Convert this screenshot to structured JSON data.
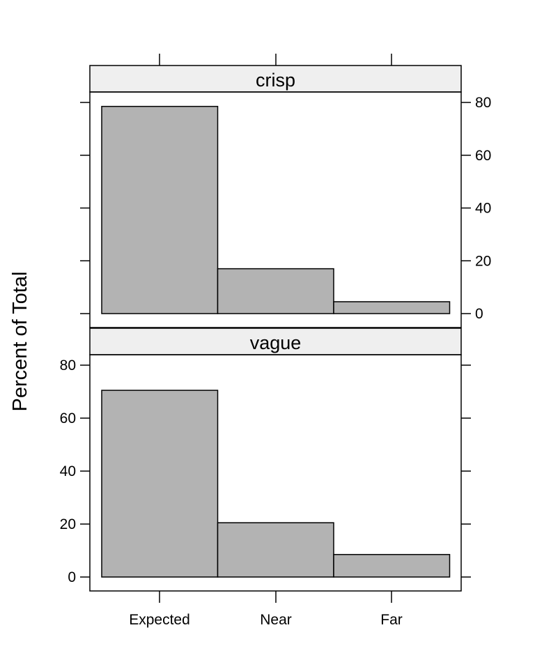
{
  "chart_data": {
    "type": "bar",
    "categories": [
      "Expected",
      "Near",
      "Far"
    ],
    "ylabel": "Percent of Total",
    "ylim": [
      0,
      90
    ],
    "yticks": [
      0,
      20,
      40,
      60,
      80
    ],
    "panels": [
      {
        "strip": "crisp",
        "values": [
          78.5,
          17,
          4.5
        ]
      },
      {
        "strip": "vague",
        "values": [
          70.5,
          20.5,
          8.5
        ]
      }
    ],
    "colors": {
      "bar_fill": "#b3b3b3",
      "strip_fill": "#efefef",
      "stroke": "#000000"
    }
  }
}
